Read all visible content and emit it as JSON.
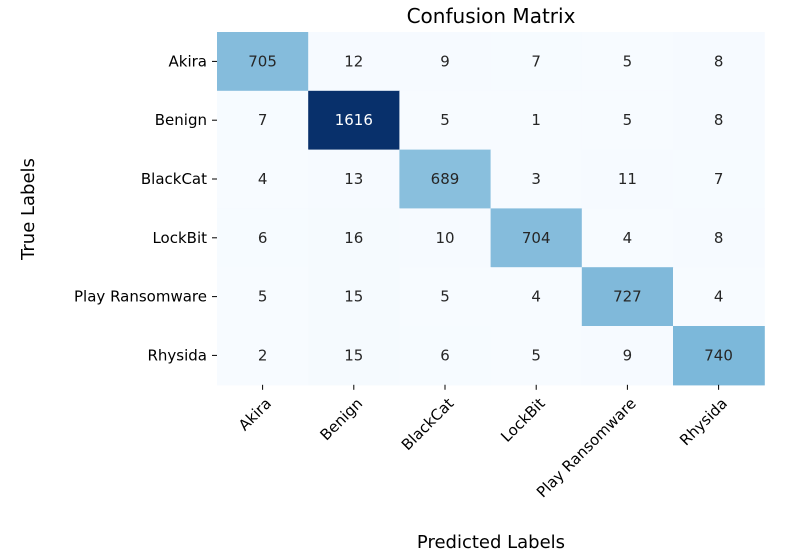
{
  "chart_data": {
    "type": "heatmap",
    "title": "Confusion Matrix",
    "xlabel": "Predicted Labels",
    "ylabel": "True Labels",
    "x_categories": [
      "Akira",
      "Benign",
      "BlackCat",
      "LockBit",
      "Play Ransomware",
      "Rhysida"
    ],
    "y_categories": [
      "Akira",
      "Benign",
      "BlackCat",
      "LockBit",
      "Play Ransomware",
      "Rhysida"
    ],
    "values": [
      [
        705,
        12,
        9,
        7,
        5,
        8
      ],
      [
        7,
        1616,
        5,
        1,
        5,
        8
      ],
      [
        4,
        13,
        689,
        3,
        11,
        7
      ],
      [
        6,
        16,
        10,
        704,
        4,
        8
      ],
      [
        5,
        15,
        5,
        4,
        727,
        4
      ],
      [
        2,
        15,
        6,
        5,
        9,
        740
      ]
    ],
    "colormap": "Blues",
    "colorbar": false,
    "annotations": true,
    "color_range": [
      1,
      1616
    ]
  }
}
